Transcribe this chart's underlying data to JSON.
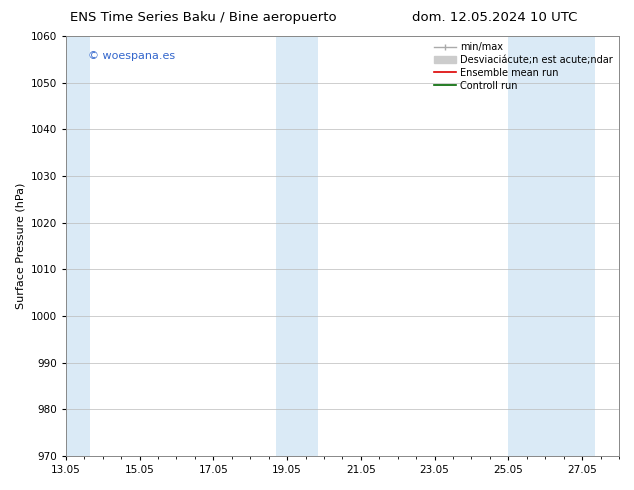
{
  "title_left": "ENS Time Series Baku / Bine aeropuerto",
  "title_right": "dom. 12.05.2024 10 UTC",
  "ylabel": "Surface Pressure (hPa)",
  "ylim": [
    970,
    1060
  ],
  "yticks": [
    970,
    980,
    990,
    1000,
    1010,
    1020,
    1030,
    1040,
    1050,
    1060
  ],
  "xtick_labels": [
    "13.05",
    "15.05",
    "17.05",
    "19.05",
    "21.05",
    "23.05",
    "25.05",
    "27.05"
  ],
  "xtick_positions": [
    13,
    15,
    17,
    19,
    21,
    23,
    25,
    27
  ],
  "x_min": 13.0,
  "x_max": 28.0,
  "shade_bands": [
    {
      "x_start": 13.0,
      "x_end": 13.65,
      "color": "#daeaf6"
    },
    {
      "x_start": 18.7,
      "x_end": 19.85,
      "color": "#daeaf6"
    },
    {
      "x_start": 25.0,
      "x_end": 27.35,
      "color": "#daeaf6"
    }
  ],
  "watermark_text": "© woespana.es",
  "watermark_color": "#3366cc",
  "background_color": "#ffffff",
  "grid_color": "#bbbbbb",
  "title_fontsize": 9.5,
  "axis_label_fontsize": 8,
  "tick_fontsize": 7.5,
  "legend_fontsize": 7,
  "watermark_fontsize": 8
}
